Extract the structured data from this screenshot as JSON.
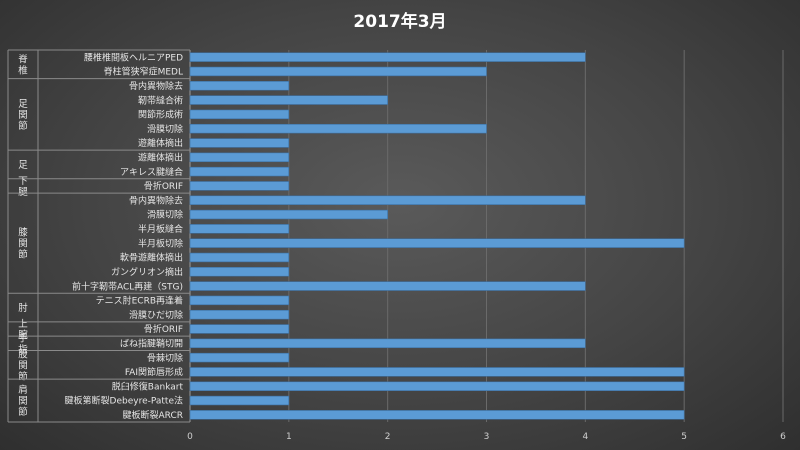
{
  "chart_data": {
    "type": "bar",
    "orientation": "horizontal",
    "title": "2017年3月",
    "xlim": [
      0,
      6
    ],
    "x_ticks": [
      "0",
      "1",
      "2",
      "3",
      "4",
      "5",
      "6"
    ],
    "grid": true,
    "bar_color": "#5b9bd5",
    "groups": [
      {
        "name": "脊椎",
        "categories": [
          "腰椎椎間板ヘルニアPED",
          "脊柱管狭窄症MEDL"
        ],
        "values": [
          4,
          3
        ]
      },
      {
        "name": "足関節",
        "categories": [
          "骨内異物除去",
          "靭帯縫合術",
          "関節形成術",
          "滑膜切除",
          "遊離体摘出"
        ],
        "values": [
          1,
          2,
          1,
          3,
          1
        ]
      },
      {
        "name": "足",
        "categories": [
          "遊離体摘出",
          "アキレス腱縫合"
        ],
        "values": [
          1,
          1
        ]
      },
      {
        "name": "下腿",
        "categories": [
          "骨折ORIF"
        ],
        "values": [
          1
        ]
      },
      {
        "name": "膝関節",
        "categories": [
          "骨内異物除去",
          "滑膜切除",
          "半月板縫合",
          "半月板切除",
          "軟骨遊離体摘出",
          "ガングリオン摘出",
          "前十字靭帯ACL再建（STG)"
        ],
        "values": [
          4,
          2,
          1,
          5,
          1,
          1,
          4
        ]
      },
      {
        "name": "肘",
        "categories": [
          "テニス肘ECRB再逢着",
          "滑膜ひだ切除"
        ],
        "values": [
          1,
          1
        ]
      },
      {
        "name": "上腕",
        "categories": [
          "骨折ORIF"
        ],
        "values": [
          1
        ]
      },
      {
        "name": "手指",
        "categories": [
          "ばね指腱鞘切開"
        ],
        "values": [
          4
        ]
      },
      {
        "name": "股関節",
        "categories": [
          "骨棘切除",
          "FAI関節唇形成"
        ],
        "values": [
          1,
          5
        ]
      },
      {
        "name": "肩関節",
        "categories": [
          "脱臼修復Bankart",
          "腱板第断裂Debeyre-Patte法",
          "腱板断裂ARCR"
        ],
        "values": [
          5,
          1,
          5
        ]
      }
    ]
  }
}
